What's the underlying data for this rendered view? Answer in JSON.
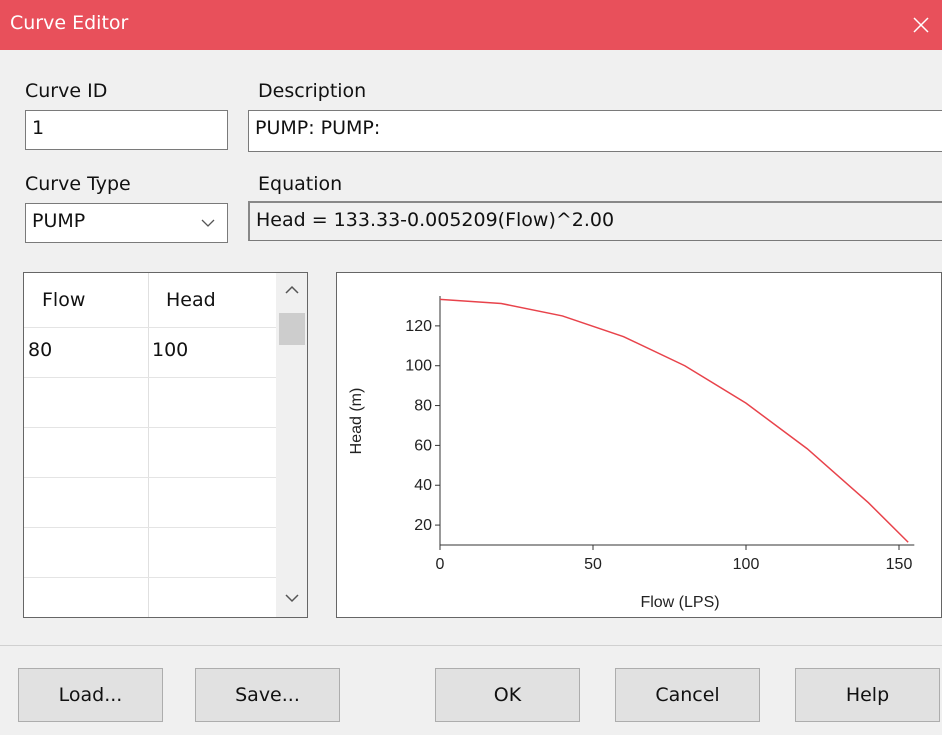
{
  "window": {
    "title": "Curve Editor"
  },
  "fields": {
    "curve_id_label": "Curve ID",
    "curve_id": "1",
    "description_label": "Description",
    "description": "PUMP: PUMP:",
    "curve_type_label": "Curve Type",
    "curve_type": "PUMP",
    "equation_label": "Equation",
    "equation": "Head = 133.33-0.005209(Flow)^2.00"
  },
  "table": {
    "columns": [
      "Flow",
      "Head"
    ],
    "rows": [
      [
        "80",
        "100"
      ]
    ]
  },
  "chart_data": {
    "type": "line",
    "x": [
      0,
      20,
      40,
      60,
      80,
      100,
      120,
      140,
      153
    ],
    "values": [
      133.33,
      131.25,
      125.0,
      114.58,
      99.99,
      81.24,
      58.32,
      31.23,
      11.39
    ],
    "color": "#e8434b",
    "xlabel": "Flow (LPS)",
    "ylabel": "Head (m)",
    "xlim": [
      0,
      155
    ],
    "ylim": [
      10,
      135
    ],
    "xticks": [
      0,
      50,
      100,
      150
    ],
    "yticks": [
      20,
      40,
      60,
      80,
      100,
      120
    ]
  },
  "buttons": [
    "Load...",
    "Save...",
    "OK",
    "Cancel",
    "Help"
  ]
}
